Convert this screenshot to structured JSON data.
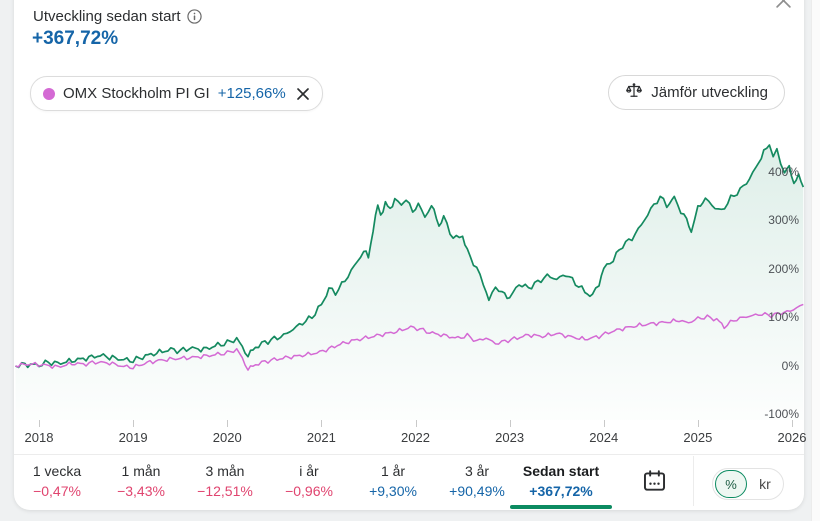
{
  "header": {
    "title": "Utveckling sedan start",
    "value": "+367,72%"
  },
  "comparison_chip": {
    "label": "OMX Stockholm PI GI",
    "value": "+125,66%"
  },
  "compare_button": {
    "label": "Jämför utveckling"
  },
  "periods": [
    {
      "label": "1 vecka",
      "value": "−0,47%",
      "trend": "negative",
      "selected": false
    },
    {
      "label": "1 mån",
      "value": "−3,43%",
      "trend": "negative",
      "selected": false
    },
    {
      "label": "3 mån",
      "value": "−12,51%",
      "trend": "negative",
      "selected": false
    },
    {
      "label": "i år",
      "value": "−0,96%",
      "trend": "negative",
      "selected": false
    },
    {
      "label": "1 år",
      "value": "+9,30%",
      "trend": "positive",
      "selected": false
    },
    {
      "label": "3 år",
      "value": "+90,49%",
      "trend": "positive",
      "selected": false
    },
    {
      "label": "Sedan start",
      "value": "+367,72%",
      "trend": "positive",
      "selected": true
    }
  ],
  "unit_toggle": {
    "options": [
      "%",
      "kr"
    ],
    "selected": "%"
  },
  "icons": {
    "info": "info-icon",
    "close": "close-icon",
    "chip_close": "close-icon",
    "compare": "balance-scale-icon",
    "calendar": "calendar-icon"
  },
  "colors": {
    "accent_green": "#0c8b61",
    "chart_green": "#158a60",
    "chart_magenta": "#d46ad4",
    "positive_blue": "#1565a8",
    "negative_pink": "#e0446f"
  },
  "chart_data": {
    "type": "line",
    "x_ticks": [
      "2018",
      "2019",
      "2020",
      "2021",
      "2022",
      "2023",
      "2024",
      "2025",
      "2026"
    ],
    "y_ticks": [
      "400%",
      "300%",
      "200%",
      "100%",
      "0%",
      "-100%"
    ],
    "y_tick_values": [
      400,
      300,
      200,
      100,
      0,
      -100
    ],
    "x_range": [
      2017.75,
      2026.12
    ],
    "y_range": [
      -100,
      460
    ],
    "grid": false,
    "legend_position": "chip-top-left",
    "series": [
      {
        "name": "primary",
        "display_value": "+367,72%",
        "color": "#158a60",
        "fill": true,
        "noise_amp": 3,
        "points": [
          [
            2017.75,
            0
          ],
          [
            2017.85,
            2
          ],
          [
            2018.0,
            1
          ],
          [
            2018.1,
            7
          ],
          [
            2018.2,
            4
          ],
          [
            2018.35,
            10
          ],
          [
            2018.5,
            15
          ],
          [
            2018.65,
            21
          ],
          [
            2018.75,
            17
          ],
          [
            2018.9,
            12
          ],
          [
            2019.0,
            10
          ],
          [
            2019.1,
            18
          ],
          [
            2019.25,
            26
          ],
          [
            2019.4,
            33
          ],
          [
            2019.5,
            30
          ],
          [
            2019.6,
            36
          ],
          [
            2019.75,
            33
          ],
          [
            2019.9,
            42
          ],
          [
            2020.0,
            47
          ],
          [
            2020.1,
            55
          ],
          [
            2020.16,
            38
          ],
          [
            2020.22,
            20
          ],
          [
            2020.3,
            38
          ],
          [
            2020.4,
            48
          ],
          [
            2020.5,
            55
          ],
          [
            2020.6,
            62
          ],
          [
            2020.7,
            75
          ],
          [
            2020.8,
            88
          ],
          [
            2020.9,
            100
          ],
          [
            2021.0,
            125
          ],
          [
            2021.08,
            158
          ],
          [
            2021.15,
            150
          ],
          [
            2021.25,
            175
          ],
          [
            2021.35,
            205
          ],
          [
            2021.45,
            235
          ],
          [
            2021.5,
            225
          ],
          [
            2021.55,
            280
          ],
          [
            2021.6,
            330
          ],
          [
            2021.63,
            310
          ],
          [
            2021.68,
            335
          ],
          [
            2021.73,
            320
          ],
          [
            2021.78,
            345
          ],
          [
            2021.85,
            330
          ],
          [
            2021.9,
            345
          ],
          [
            2021.97,
            315
          ],
          [
            2022.03,
            335
          ],
          [
            2022.1,
            305
          ],
          [
            2022.17,
            330
          ],
          [
            2022.25,
            290
          ],
          [
            2022.3,
            305
          ],
          [
            2022.4,
            262
          ],
          [
            2022.5,
            268
          ],
          [
            2022.55,
            235
          ],
          [
            2022.65,
            200
          ],
          [
            2022.72,
            170
          ],
          [
            2022.78,
            135
          ],
          [
            2022.85,
            162
          ],
          [
            2022.92,
            150
          ],
          [
            2023.0,
            140
          ],
          [
            2023.1,
            168
          ],
          [
            2023.2,
            160
          ],
          [
            2023.3,
            172
          ],
          [
            2023.4,
            185
          ],
          [
            2023.5,
            178
          ],
          [
            2023.6,
            188
          ],
          [
            2023.7,
            170
          ],
          [
            2023.8,
            152
          ],
          [
            2023.88,
            143
          ],
          [
            2023.95,
            170
          ],
          [
            2024.0,
            200
          ],
          [
            2024.1,
            218
          ],
          [
            2024.2,
            248
          ],
          [
            2024.3,
            262
          ],
          [
            2024.4,
            290
          ],
          [
            2024.5,
            322
          ],
          [
            2024.6,
            348
          ],
          [
            2024.67,
            330
          ],
          [
            2024.75,
            345
          ],
          [
            2024.82,
            318
          ],
          [
            2024.88,
            300
          ],
          [
            2024.93,
            278
          ],
          [
            2025.0,
            325
          ],
          [
            2025.08,
            345
          ],
          [
            2025.15,
            330
          ],
          [
            2025.25,
            318
          ],
          [
            2025.35,
            345
          ],
          [
            2025.45,
            362
          ],
          [
            2025.55,
            385
          ],
          [
            2025.62,
            410
          ],
          [
            2025.7,
            440
          ],
          [
            2025.76,
            455
          ],
          [
            2025.8,
            430
          ],
          [
            2025.84,
            445
          ],
          [
            2025.88,
            420
          ],
          [
            2025.92,
            398
          ],
          [
            2025.97,
            408
          ],
          [
            2026.02,
            378
          ],
          [
            2026.07,
            390
          ],
          [
            2026.12,
            368
          ]
        ]
      },
      {
        "name": "OMX Stockholm PI GI",
        "display_value": "+125,66%",
        "color": "#d46ad4",
        "fill": false,
        "noise_amp": 2.2,
        "points": [
          [
            2017.75,
            0
          ],
          [
            2017.9,
            3
          ],
          [
            2018.05,
            1
          ],
          [
            2018.2,
            -3
          ],
          [
            2018.35,
            4
          ],
          [
            2018.5,
            3
          ],
          [
            2018.6,
            7
          ],
          [
            2018.75,
            5
          ],
          [
            2018.9,
            -2
          ],
          [
            2019.0,
            -4
          ],
          [
            2019.15,
            6
          ],
          [
            2019.3,
            11
          ],
          [
            2019.45,
            14
          ],
          [
            2019.6,
            16
          ],
          [
            2019.75,
            19
          ],
          [
            2019.9,
            23
          ],
          [
            2020.0,
            26
          ],
          [
            2020.1,
            33
          ],
          [
            2020.16,
            15
          ],
          [
            2020.22,
            -8
          ],
          [
            2020.3,
            2
          ],
          [
            2020.4,
            8
          ],
          [
            2020.5,
            12
          ],
          [
            2020.65,
            17
          ],
          [
            2020.8,
            21
          ],
          [
            2020.95,
            26
          ],
          [
            2021.05,
            32
          ],
          [
            2021.2,
            44
          ],
          [
            2021.35,
            52
          ],
          [
            2021.5,
            58
          ],
          [
            2021.65,
            64
          ],
          [
            2021.8,
            70
          ],
          [
            2021.95,
            79
          ],
          [
            2022.05,
            75
          ],
          [
            2022.15,
            68
          ],
          [
            2022.3,
            62
          ],
          [
            2022.45,
            56
          ],
          [
            2022.55,
            62
          ],
          [
            2022.65,
            50
          ],
          [
            2022.75,
            57
          ],
          [
            2022.85,
            45
          ],
          [
            2022.95,
            50
          ],
          [
            2023.05,
            55
          ],
          [
            2023.2,
            63
          ],
          [
            2023.35,
            60
          ],
          [
            2023.5,
            66
          ],
          [
            2023.65,
            59
          ],
          [
            2023.8,
            54
          ],
          [
            2023.95,
            60
          ],
          [
            2024.05,
            68
          ],
          [
            2024.2,
            76
          ],
          [
            2024.35,
            82
          ],
          [
            2024.5,
            86
          ],
          [
            2024.65,
            89
          ],
          [
            2024.8,
            93
          ],
          [
            2024.9,
            88
          ],
          [
            2025.0,
            97
          ],
          [
            2025.1,
            100
          ],
          [
            2025.2,
            95
          ],
          [
            2025.28,
            80
          ],
          [
            2025.38,
            93
          ],
          [
            2025.48,
            99
          ],
          [
            2025.58,
            103
          ],
          [
            2025.68,
            106
          ],
          [
            2025.78,
            103
          ],
          [
            2025.88,
            108
          ],
          [
            2025.98,
            112
          ],
          [
            2026.05,
            119
          ],
          [
            2026.12,
            126
          ]
        ]
      }
    ]
  }
}
